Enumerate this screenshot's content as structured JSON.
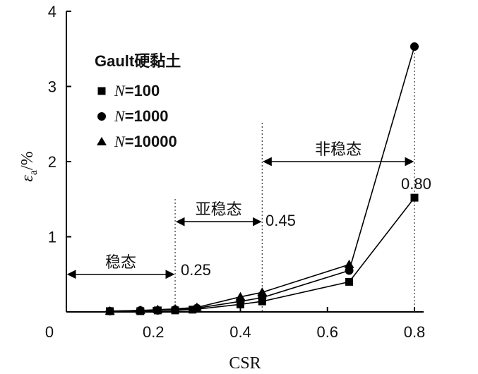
{
  "chart_data": {
    "type": "line",
    "title": "",
    "xlabel": "CSR",
    "ylabel": "εa/%",
    "ylabel_main": "ε",
    "ylabel_sub": "a",
    "ylabel_unit": "/%",
    "xlim": [
      0,
      0.8
    ],
    "ylim": [
      0,
      4
    ],
    "x_ticks": [
      0,
      0.2,
      0.4,
      0.6,
      0.8
    ],
    "x_tick_labels": [
      "0",
      "0.2",
      "0.4",
      "0.6",
      "0.8"
    ],
    "y_ticks": [
      1,
      2,
      3,
      4
    ],
    "y_tick_labels": [
      "1",
      "2",
      "3",
      "4"
    ],
    "grid": false,
    "legend": {
      "title": "Gault硬黏土",
      "placement": "top-left",
      "var": "N",
      "entries": [
        "=100",
        "=1000",
        "=10000"
      ]
    },
    "series": [
      {
        "name": "N=100",
        "marker": "square",
        "x": [
          0.1,
          0.17,
          0.21,
          0.25,
          0.29,
          0.4,
          0.45,
          0.65,
          0.8
        ],
        "y": [
          0.01,
          0.01,
          0.02,
          0.02,
          0.03,
          0.1,
          0.14,
          0.4,
          1.52
        ]
      },
      {
        "name": "N=1000",
        "marker": "circle",
        "x": [
          0.1,
          0.17,
          0.21,
          0.25,
          0.3,
          0.4,
          0.45,
          0.65,
          0.8
        ],
        "y": [
          0.01,
          0.02,
          0.02,
          0.03,
          0.05,
          0.14,
          0.19,
          0.55,
          3.53
        ]
      },
      {
        "name": "N=10000",
        "marker": "triangle",
        "x": [
          0.1,
          0.17,
          0.21,
          0.25,
          0.3,
          0.4,
          0.45,
          0.65
        ],
        "y": [
          0.01,
          0.02,
          0.03,
          0.04,
          0.06,
          0.2,
          0.26,
          0.63
        ]
      }
    ],
    "annotations": {
      "zone_labels": [
        "稳态",
        "亚稳态",
        "非稳态"
      ],
      "boundaries": [
        {
          "x": 0.25,
          "label": "0.25"
        },
        {
          "x": 0.45,
          "label": "0.45"
        },
        {
          "x": 0.8,
          "label": "0.80"
        }
      ],
      "zones": [
        {
          "label": "稳态",
          "from": 0,
          "to": 0.25,
          "y": 0.5
        },
        {
          "label": "亚稳态",
          "from": 0.25,
          "to": 0.45,
          "y": 1.2
        },
        {
          "label": "非稳态",
          "from": 0.45,
          "to": 0.8,
          "y": 2.0
        }
      ]
    }
  }
}
